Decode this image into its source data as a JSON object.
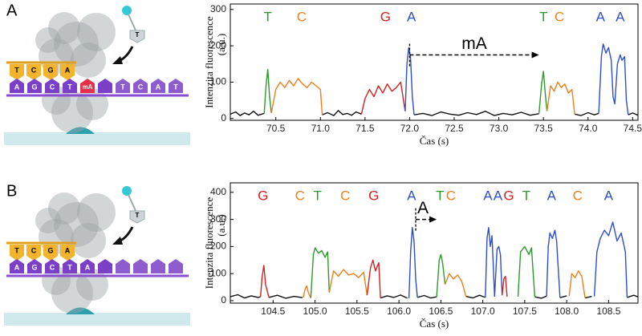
{
  "chart_data": [
    {
      "type": "line",
      "panel": "A",
      "y_label": "Intenzita fluorescence",
      "y_unit": "(a.u.)",
      "x_label": "Čas (s)",
      "xlim": [
        69.99,
        74.56
      ],
      "ylim": [
        -5,
        315
      ],
      "xticks": [
        70.5,
        {
          "value": 71,
          "label": "71.0"
        },
        71.5,
        {
          "value": 72,
          "label": "72.0"
        },
        72.5,
        {
          "value": 73,
          "label": "73.0"
        },
        73.5,
        {
          "value": 74,
          "label": "74.0"
        },
        74.5
      ],
      "yticks": [
        0,
        100,
        200,
        300
      ],
      "annotations": [
        {
          "text": "T",
          "x": 70.41,
          "color": "#2e9a2e"
        },
        {
          "text": "C",
          "x": 70.79,
          "color": "#f07f1a"
        },
        {
          "text": "G",
          "x": 71.73,
          "color": "#d42020"
        },
        {
          "text": "A",
          "x": 72.02,
          "color": "#2f4fc8"
        },
        {
          "text": "T",
          "x": 73.5,
          "color": "#2e9a2e"
        },
        {
          "text": "C",
          "x": 73.68,
          "color": "#f07f1a"
        },
        {
          "text": "A",
          "x": 74.14,
          "color": "#2f4fc8"
        },
        {
          "text": "A",
          "x": 74.36,
          "color": "#2f4fc8"
        }
      ],
      "arrow": {
        "label": "mA",
        "x_start": 72.0,
        "x_end": 73.45,
        "y": 175
      },
      "series": [
        {
          "color": "#111111",
          "x": [
            69.99,
            70.05,
            70.1,
            70.15,
            70.2,
            70.25,
            70.3,
            70.37,
            70.7,
            71.02,
            71.08,
            71.15,
            71.2,
            71.25,
            71.3,
            71.35,
            71.4,
            71.46,
            71.7,
            72.05,
            72.15,
            72.25,
            72.35,
            72.45,
            72.55,
            72.65,
            72.75,
            72.85,
            72.95,
            73.05,
            73.15,
            73.25,
            73.35,
            73.45,
            73.7,
            73.85,
            73.92,
            74.0,
            74.07,
            74.12,
            74.3,
            74.45,
            74.5,
            74.56
          ],
          "values": [
            12,
            18,
            8,
            15,
            10,
            20,
            9,
            14,
            null,
            10,
            16,
            8,
            22,
            11,
            14,
            9,
            18,
            12,
            null,
            10,
            14,
            8,
            18,
            12,
            9,
            16,
            11,
            20,
            8,
            14,
            10,
            17,
            9,
            13,
            null,
            12,
            8,
            16,
            10,
            14,
            null,
            10,
            15,
            9
          ]
        },
        {
          "color": "#2e9a2e",
          "x": [
            70.37,
            70.39,
            70.41,
            70.43,
            70.45
          ],
          "values": [
            14,
            90,
            135,
            60,
            15
          ]
        },
        {
          "color": "#f07f1a",
          "x": [
            70.45,
            70.5,
            70.55,
            70.6,
            70.65,
            70.7,
            70.75,
            70.8,
            70.85,
            70.9,
            70.95,
            71.0,
            71.02
          ],
          "values": [
            15,
            80,
            100,
            85,
            105,
            90,
            110,
            95,
            85,
            100,
            90,
            80,
            10
          ]
        },
        {
          "color": "#d42020",
          "x": [
            71.46,
            71.5,
            71.55,
            71.6,
            71.65,
            71.7,
            71.75,
            71.8,
            71.85,
            71.9,
            71.95
          ],
          "values": [
            12,
            55,
            80,
            60,
            90,
            70,
            95,
            75,
            85,
            100,
            20
          ]
        },
        {
          "color": "#2f4fc8",
          "x": [
            71.95,
            71.97,
            71.99,
            72.01,
            72.03,
            72.05
          ],
          "values": [
            20,
            150,
            195,
            170,
            60,
            10
          ]
        },
        {
          "color": "#2e9a2e",
          "x": [
            73.45,
            73.48,
            73.5,
            73.52,
            73.54
          ],
          "values": [
            13,
            95,
            130,
            70,
            20
          ]
        },
        {
          "color": "#f07f1a",
          "x": [
            73.54,
            73.58,
            73.62,
            73.66,
            73.7,
            73.74,
            73.78,
            73.82,
            73.85
          ],
          "values": [
            20,
            90,
            75,
            100,
            85,
            95,
            70,
            80,
            12
          ]
        },
        {
          "color": "#2f4fc8",
          "x": [
            74.12,
            74.15,
            74.17,
            74.2,
            74.23,
            74.26,
            74.28,
            74.3,
            74.33,
            74.36,
            74.38,
            74.41,
            74.43,
            74.45
          ],
          "values": [
            14,
            170,
            205,
            180,
            195,
            160,
            60,
            40,
            150,
            175,
            160,
            170,
            50,
            10
          ]
        }
      ]
    },
    {
      "type": "line",
      "panel": "B",
      "y_label": "Intenzita fluorescence",
      "y_unit": "(a.u.)",
      "x_label": "Čas (s)",
      "xlim": [
        103.99,
        108.85
      ],
      "ylim": [
        -9,
        435
      ],
      "xticks": [
        104.5,
        {
          "value": 105,
          "label": "105.0"
        },
        105.5,
        {
          "value": 106,
          "label": "106.0"
        },
        106.5,
        {
          "value": 107,
          "label": "107.0"
        },
        107.5,
        {
          "value": 108,
          "label": "108.0"
        },
        108.5
      ],
      "yticks": [
        0,
        100,
        200,
        300,
        400
      ],
      "annotations": [
        {
          "text": "G",
          "x": 104.38,
          "color": "#d42020"
        },
        {
          "text": "C",
          "x": 104.82,
          "color": "#f07f1a"
        },
        {
          "text": "T",
          "x": 105.03,
          "color": "#2e9a2e"
        },
        {
          "text": "C",
          "x": 105.36,
          "color": "#f07f1a"
        },
        {
          "text": "G",
          "x": 105.7,
          "color": "#d42020"
        },
        {
          "text": "A",
          "x": 106.15,
          "color": "#2f4fc8"
        },
        {
          "text": "T",
          "x": 106.49,
          "color": "#2e9a2e"
        },
        {
          "text": "C",
          "x": 106.62,
          "color": "#f07f1a"
        },
        {
          "text": "A",
          "x": 107.06,
          "color": "#2f4fc8"
        },
        {
          "text": "A",
          "x": 107.18,
          "color": "#2f4fc8"
        },
        {
          "text": "G",
          "x": 107.31,
          "color": "#d42020"
        },
        {
          "text": "T",
          "x": 107.52,
          "color": "#2e9a2e"
        },
        {
          "text": "A",
          "x": 107.82,
          "color": "#2f4fc8"
        },
        {
          "text": "C",
          "x": 108.13,
          "color": "#f07f1a"
        },
        {
          "text": "A",
          "x": 108.5,
          "color": "#2f4fc8"
        }
      ],
      "arrow": {
        "label": "A",
        "x_start": 106.2,
        "x_end": 106.45,
        "y": 300
      },
      "series": [
        {
          "color": "#111111",
          "x": [
            103.99,
            104.08,
            104.16,
            104.24,
            104.32,
            104.35,
            104.4,
            104.45,
            104.55,
            104.65,
            104.75,
            104.85,
            105.3,
            105.78,
            105.86,
            105.94,
            106.02,
            106.1,
            106.17,
            106.22,
            106.3,
            106.38,
            106.45,
            106.6,
            106.8,
            106.88,
            106.96,
            107.03,
            107.3,
            107.62,
            107.7,
            107.76,
            107.85,
            107.92,
            108.0,
            108.15,
            108.22,
            108.3,
            108.5,
            108.72,
            108.8,
            108.85
          ],
          "values": [
            15,
            22,
            10,
            18,
            12,
            14,
            null,
            12,
            20,
            9,
            16,
            11,
            null,
            10,
            18,
            12,
            21,
            9,
            null,
            12,
            19,
            10,
            14,
            null,
            16,
            10,
            20,
            12,
            null,
            14,
            9,
            17,
            null,
            11,
            18,
            null,
            10,
            16,
            null,
            12,
            20,
            14
          ]
        },
        {
          "color": "#d42020",
          "x": [
            104.35,
            104.37,
            104.39,
            104.41,
            104.45
          ],
          "values": [
            14,
            90,
            130,
            60,
            12
          ]
        },
        {
          "color": "#f07f1a",
          "x": [
            104.86,
            104.88,
            104.9,
            104.92,
            104.95
          ],
          "values": [
            11,
            40,
            55,
            30,
            10
          ]
        },
        {
          "color": "#2e9a2e",
          "x": [
            104.95,
            104.98,
            105.0,
            105.04,
            105.08,
            105.12,
            105.15,
            105.17
          ],
          "values": [
            10,
            170,
            195,
            175,
            185,
            160,
            180,
            30
          ]
        },
        {
          "color": "#f07f1a",
          "x": [
            105.17,
            105.22,
            105.28,
            105.34,
            105.4,
            105.46,
            105.52,
            105.58,
            105.62
          ],
          "values": [
            30,
            110,
            90,
            115,
            95,
            100,
            85,
            105,
            20
          ]
        },
        {
          "color": "#d42020",
          "x": [
            105.62,
            105.66,
            105.69,
            105.72,
            105.76,
            105.78
          ],
          "values": [
            20,
            120,
            150,
            110,
            140,
            10
          ]
        },
        {
          "color": "#2f4fc8",
          "x": [
            106.12,
            106.14,
            106.16,
            106.18,
            106.2,
            106.22
          ],
          "values": [
            9,
            180,
            270,
            220,
            80,
            12
          ]
        },
        {
          "color": "#2e9a2e",
          "x": [
            106.45,
            106.48,
            106.5,
            106.52,
            106.55
          ],
          "values": [
            14,
            150,
            170,
            140,
            60
          ]
        },
        {
          "color": "#f07f1a",
          "x": [
            106.55,
            106.6,
            106.65,
            106.7,
            106.75,
            106.8
          ],
          "values": [
            60,
            100,
            80,
            95,
            70,
            16
          ]
        },
        {
          "color": "#2f4fc8",
          "x": [
            107.03,
            107.05,
            107.07,
            107.09,
            107.11,
            107.14
          ],
          "values": [
            12,
            230,
            270,
            200,
            240,
            15
          ]
        },
        {
          "color": "#2f4fc8",
          "x": [
            107.14,
            107.17,
            107.19,
            107.21,
            107.23
          ],
          "values": [
            15,
            190,
            200,
            170,
            20
          ]
        },
        {
          "color": "#d42020",
          "x": [
            107.23,
            107.25,
            107.27,
            107.29
          ],
          "values": [
            20,
            80,
            90,
            15
          ]
        },
        {
          "color": "#2e9a2e",
          "x": [
            107.42,
            107.45,
            107.5,
            107.55,
            107.58,
            107.62
          ],
          "values": [
            15,
            180,
            200,
            170,
            195,
            14
          ]
        },
        {
          "color": "#2f4fc8",
          "x": [
            107.76,
            107.78,
            107.8,
            107.83,
            107.86,
            107.88,
            107.92
          ],
          "values": [
            17,
            200,
            250,
            230,
            260,
            220,
            11
          ]
        },
        {
          "color": "#f07f1a",
          "x": [
            108.03,
            108.06,
            108.1,
            108.14,
            108.18,
            108.22
          ],
          "values": [
            18,
            100,
            85,
            110,
            90,
            10
          ]
        },
        {
          "color": "#2f4fc8",
          "x": [
            108.33,
            108.36,
            108.4,
            108.45,
            108.5,
            108.55,
            108.6,
            108.65,
            108.7,
            108.72
          ],
          "values": [
            16,
            180,
            230,
            260,
            240,
            290,
            220,
            250,
            180,
            12
          ]
        }
      ]
    }
  ],
  "illustrations": [
    {
      "top_strand": [
        "T",
        "C",
        "G",
        "A"
      ],
      "bottom_strand": [
        "A",
        "G",
        "C",
        "T",
        "mA",
        "",
        "T",
        "C",
        "A",
        "T"
      ],
      "nucleotide": "T"
    },
    {
      "top_strand": [
        "T",
        "C",
        "G",
        "A"
      ],
      "bottom_strand": [
        "A",
        "G",
        "C",
        "T",
        "A"
      ],
      "nucleotide": "T"
    }
  ]
}
